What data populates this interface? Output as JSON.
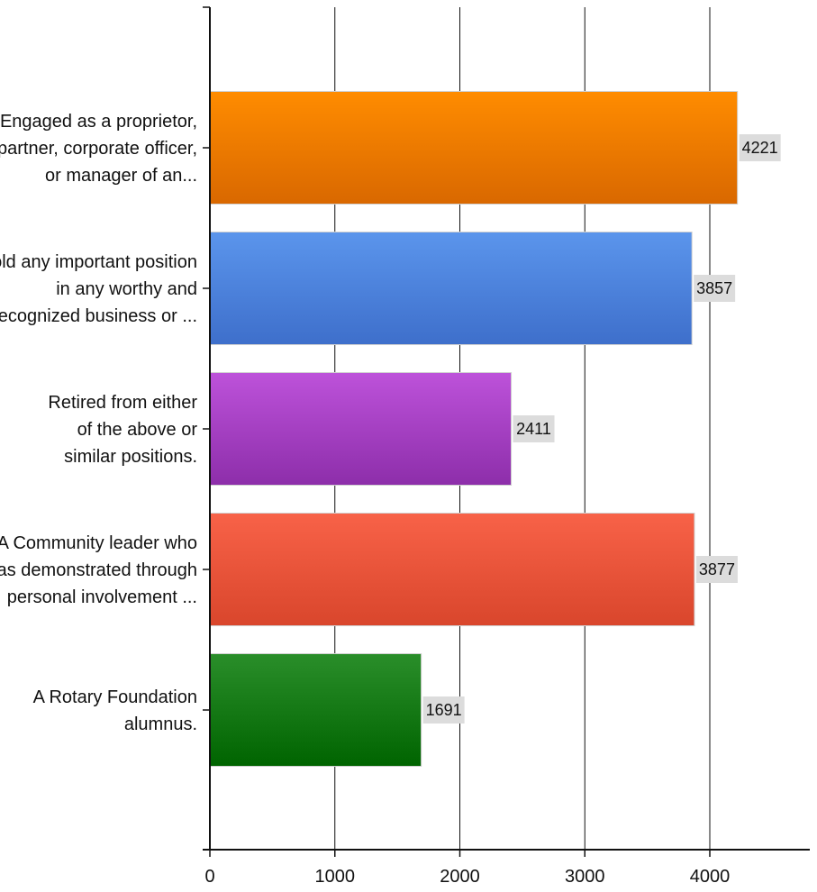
{
  "chart_data": {
    "type": "bar",
    "orientation": "horizontal",
    "title": "",
    "xlabel": "",
    "ylabel": "",
    "categories": [
      [
        "Engaged as a proprietor,",
        "partner, corporate officer,",
        "or manager of an..."
      ],
      [
        "Hold any important position",
        "in any worthy and",
        "recognized business or ..."
      ],
      [
        "Retired from either",
        "of the above or",
        "similar positions."
      ],
      [
        "A Community leader who",
        "has demonstrated through",
        "personal involvement ..."
      ],
      [
        "A Rotary Foundation",
        "alumnus."
      ]
    ],
    "values": [
      4221,
      3857,
      2411,
      3877,
      1691
    ],
    "value_labels": [
      "4221",
      "3857",
      "2411",
      "3877",
      "1691"
    ],
    "colors": [
      [
        "#ff8c00",
        "#d96800"
      ],
      [
        "#5b95ec",
        "#3e6fcb"
      ],
      [
        "#bd52da",
        "#8d2eaa"
      ],
      [
        "#f86248",
        "#d9462c"
      ],
      [
        "#2a8e2a",
        "#006400"
      ]
    ],
    "xlim": [
      0,
      4800
    ],
    "x_ticks": [
      0,
      1000,
      2000,
      3000,
      4000
    ],
    "x_tick_labels": [
      "0",
      "1000",
      "2000",
      "3000",
      "4000"
    ],
    "grid": "vertical",
    "legend": "none"
  }
}
